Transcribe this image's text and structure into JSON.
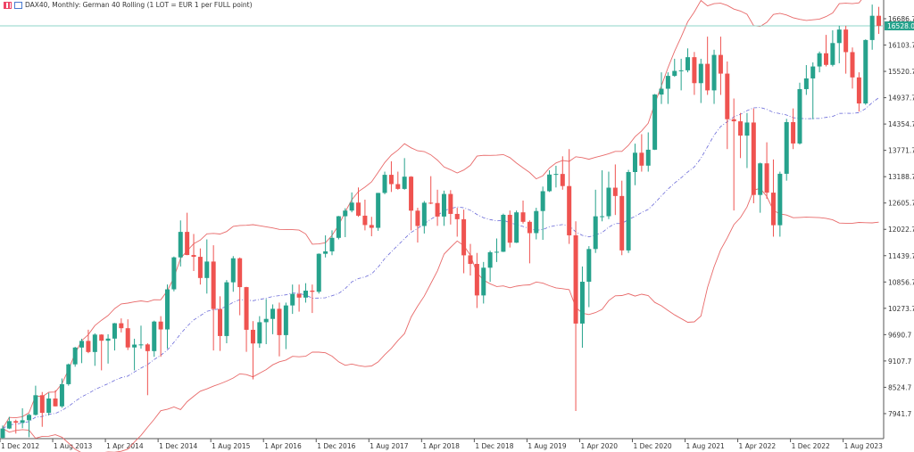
{
  "header": {
    "title": "DAX40, Monthly:  German 40 Rolling (1 LOT = EUR 1 per FULL point)",
    "icons": [
      "chart-grid-icon",
      "indicator-icon"
    ]
  },
  "colors": {
    "bull": "#26a28c",
    "bear": "#ef5350",
    "band": "#e86a6a",
    "middle": "#6a6ad8",
    "price_line": "#8fd6c8",
    "price_label_bg": "#26a28c"
  },
  "chart_data": {
    "type": "candlestick",
    "instrument": "DAX40",
    "timeframe": "Monthly",
    "indicators": [
      "bollinger-bands"
    ],
    "ylim": [
      7650,
      17000
    ],
    "y_ticks": [
      "16686.7",
      "16103.7",
      "15520.7",
      "14937.7",
      "14354.7",
      "13771.7",
      "13188.7",
      "12605.7",
      "12022.7",
      "11439.7",
      "10856.7",
      "10273.7",
      "9690.7",
      "9107.7",
      "8524.7",
      "7941.7"
    ],
    "x_ticks": [
      "1 Dec 2012",
      "1 Aug 2013",
      "1 Apr 2014",
      "1 Dec 2014",
      "1 Aug 2015",
      "1 Apr 2016",
      "1 Dec 2016",
      "1 Aug 2017",
      "1 Apr 2018",
      "1 Dec 2018",
      "1 Aug 2019",
      "1 Apr 2020",
      "1 Dec 2020",
      "1 Aug 2021",
      "1 Apr 2022",
      "1 Dec 2022",
      "1 Aug 2023"
    ],
    "current_price": "16528.0",
    "start": "Dec 2012",
    "ohlc": [
      [
        7405,
        7680,
        7380,
        7612
      ],
      [
        7612,
        7870,
        7600,
        7776
      ],
      [
        7776,
        7810,
        7500,
        7741
      ],
      [
        7741,
        8060,
        7620,
        7795
      ],
      [
        7795,
        7940,
        7420,
        7914
      ],
      [
        7914,
        8560,
        7900,
        8349
      ],
      [
        8349,
        8420,
        7650,
        7959
      ],
      [
        7959,
        8400,
        7900,
        8276
      ],
      [
        8276,
        8460,
        8100,
        8103
      ],
      [
        8103,
        8720,
        8070,
        8594
      ],
      [
        8594,
        9050,
        8560,
        9033
      ],
      [
        9033,
        9420,
        8980,
        9405
      ],
      [
        9405,
        9600,
        9060,
        9552
      ],
      [
        9552,
        9800,
        9280,
        9306
      ],
      [
        9306,
        9720,
        9000,
        9692
      ],
      [
        9692,
        9700,
        8900,
        9556
      ],
      [
        9556,
        9700,
        9050,
        9603
      ],
      [
        9603,
        9950,
        9340,
        9943
      ],
      [
        9943,
        10050,
        9740,
        9833
      ],
      [
        9833,
        10030,
        9350,
        9407
      ],
      [
        9407,
        9600,
        8900,
        9470
      ],
      [
        9470,
        9890,
        9380,
        9474
      ],
      [
        9474,
        9500,
        8350,
        9326
      ],
      [
        9326,
        10000,
        9200,
        9980
      ],
      [
        9980,
        10100,
        9200,
        9806
      ],
      [
        9806,
        10800,
        9380,
        10694
      ],
      [
        10694,
        11420,
        10650,
        11402
      ],
      [
        11402,
        12220,
        11200,
        11966
      ],
      [
        11966,
        12390,
        11450,
        11454
      ],
      [
        11454,
        11920,
        11100,
        11414
      ],
      [
        11414,
        11600,
        10800,
        10945
      ],
      [
        10945,
        11800,
        10600,
        11309
      ],
      [
        11309,
        11670,
        9340,
        10259
      ],
      [
        10259,
        10540,
        9330,
        9660
      ],
      [
        9660,
        10900,
        9500,
        10850
      ],
      [
        10850,
        11430,
        10640,
        11382
      ],
      [
        11382,
        11400,
        10120,
        10743
      ],
      [
        10743,
        10750,
        9310,
        9798
      ],
      [
        9798,
        9990,
        8700,
        9495
      ],
      [
        9495,
        10100,
        9400,
        9966
      ],
      [
        9966,
        10480,
        9480,
        10039
      ],
      [
        10039,
        10360,
        9700,
        10263
      ],
      [
        10263,
        10400,
        9210,
        9680
      ],
      [
        9680,
        10400,
        9370,
        10337
      ],
      [
        10337,
        10800,
        10150,
        10593
      ],
      [
        10593,
        10800,
        10200,
        10511
      ],
      [
        10511,
        10830,
        10400,
        10665
      ],
      [
        10665,
        10800,
        10170,
        10640
      ],
      [
        10640,
        11490,
        10600,
        11481
      ],
      [
        11481,
        11890,
        11400,
        11535
      ],
      [
        11535,
        12000,
        11450,
        11834
      ],
      [
        11834,
        12320,
        11800,
        12313
      ],
      [
        12313,
        12490,
        11850,
        12438
      ],
      [
        12438,
        12840,
        12400,
        12615
      ],
      [
        12615,
        12950,
        12300,
        12325
      ],
      [
        12325,
        12680,
        12000,
        12118
      ],
      [
        12118,
        12300,
        11870,
        12056
      ],
      [
        12056,
        12830,
        11990,
        12829
      ],
      [
        12829,
        13300,
        12800,
        13230
      ],
      [
        13230,
        13530,
        12850,
        13024
      ],
      [
        13024,
        13300,
        12900,
        12918
      ],
      [
        12918,
        13600,
        12900,
        13189
      ],
      [
        13189,
        13200,
        12000,
        12436
      ],
      [
        12436,
        12500,
        11730,
        12097
      ],
      [
        12097,
        12650,
        11930,
        12612
      ],
      [
        12612,
        13200,
        12580,
        12605
      ],
      [
        12605,
        12900,
        12100,
        12306
      ],
      [
        12306,
        12880,
        12100,
        12806
      ],
      [
        12806,
        12890,
        12130,
        12364
      ],
      [
        12364,
        12500,
        11860,
        12247
      ],
      [
        12247,
        12460,
        11050,
        11447
      ],
      [
        11447,
        11700,
        11000,
        11257
      ],
      [
        11257,
        11500,
        10280,
        10559
      ],
      [
        10559,
        11300,
        10380,
        11173
      ],
      [
        11173,
        11550,
        10860,
        11516
      ],
      [
        11516,
        11820,
        11300,
        11526
      ],
      [
        11526,
        12370,
        11520,
        12344
      ],
      [
        12344,
        12440,
        11620,
        11727
      ],
      [
        11727,
        12440,
        11720,
        12399
      ],
      [
        12399,
        12660,
        12150,
        12189
      ],
      [
        12189,
        12220,
        11270,
        11939
      ],
      [
        11939,
        12500,
        11800,
        12428
      ],
      [
        12428,
        12970,
        11790,
        12867
      ],
      [
        12867,
        13330,
        12850,
        13236
      ],
      [
        13236,
        13430,
        12950,
        13249
      ],
      [
        13249,
        13640,
        12900,
        12981
      ],
      [
        12981,
        13800,
        11700,
        11890
      ],
      [
        11890,
        12200,
        8000,
        9936
      ],
      [
        9936,
        11200,
        9400,
        10862
      ],
      [
        10862,
        11650,
        10300,
        11587
      ],
      [
        11587,
        12900,
        11500,
        12311
      ],
      [
        12311,
        13330,
        12200,
        12313
      ],
      [
        12313,
        13300,
        12250,
        12945
      ],
      [
        12945,
        13460,
        12340,
        12761
      ],
      [
        12761,
        13100,
        11450,
        11556
      ],
      [
        11556,
        13340,
        11500,
        13291
      ],
      [
        13291,
        13920,
        13000,
        13719
      ],
      [
        13719,
        14130,
        13300,
        13433
      ],
      [
        13433,
        14170,
        13300,
        13786
      ],
      [
        13786,
        15020,
        13780,
        15008
      ],
      [
        15008,
        15500,
        14800,
        15136
      ],
      [
        15136,
        15500,
        14800,
        15421
      ],
      [
        15421,
        15800,
        15400,
        15531
      ],
      [
        15531,
        15800,
        15100,
        15544
      ],
      [
        15544,
        16030,
        15500,
        15835
      ],
      [
        15835,
        15950,
        15000,
        15260
      ],
      [
        15260,
        15800,
        14820,
        15688
      ],
      [
        15688,
        16290,
        15000,
        15100
      ],
      [
        15100,
        16000,
        14800,
        15885
      ],
      [
        15885,
        16290,
        15000,
        15471
      ],
      [
        15471,
        15740,
        13800,
        14461
      ],
      [
        14461,
        14920,
        12440,
        14415
      ],
      [
        14415,
        14600,
        13600,
        14098
      ],
      [
        14098,
        14600,
        13380,
        14388
      ],
      [
        14388,
        14700,
        12600,
        12784
      ],
      [
        12784,
        13500,
        12390,
        13484
      ],
      [
        13484,
        13950,
        12700,
        12835
      ],
      [
        12835,
        13570,
        11860,
        12114
      ],
      [
        12114,
        13300,
        11860,
        13253
      ],
      [
        13253,
        14470,
        13100,
        14397
      ],
      [
        14397,
        14700,
        13800,
        13924
      ],
      [
        13924,
        15270,
        13900,
        15128
      ],
      [
        15128,
        15660,
        15000,
        15365
      ],
      [
        15365,
        15720,
        14460,
        15629
      ],
      [
        15629,
        15960,
        15500,
        15922
      ],
      [
        15922,
        16330,
        15630,
        15664
      ],
      [
        15664,
        16430,
        15630,
        16148
      ],
      [
        16148,
        16530,
        15700,
        16447
      ],
      [
        16447,
        16530,
        15470,
        15947
      ],
      [
        15947,
        16050,
        15140,
        15387
      ],
      [
        15387,
        15500,
        14630,
        14810
      ],
      [
        14810,
        16230,
        14780,
        16215
      ],
      [
        16215,
        17000,
        16000,
        16752
      ],
      [
        16752,
        16950,
        16350,
        16528
      ]
    ]
  }
}
